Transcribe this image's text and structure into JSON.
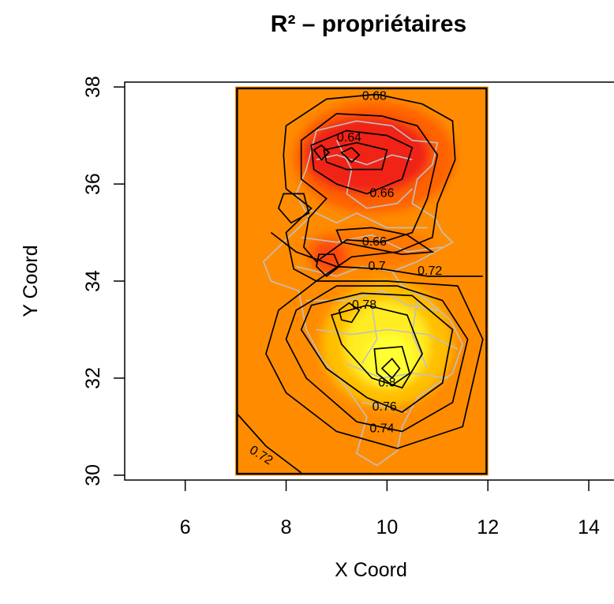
{
  "chart_data": {
    "type": "heatmap",
    "title": "R² – propriétaires",
    "xlabel": "X Coord",
    "ylabel": "Y Coord",
    "xlim": [
      4.8,
      14.5
    ],
    "ylim": [
      29.9,
      38.1
    ],
    "xticks": [
      6,
      8,
      10,
      12,
      14
    ],
    "yticks": [
      30,
      32,
      34,
      36,
      38
    ],
    "raster_extent": {
      "x": [
        7,
        12
      ],
      "y": [
        30,
        38
      ]
    },
    "color_low": "#ff8c00",
    "color_high": "#ffff33",
    "color_min_end": "#ee1c1c",
    "contour_color": "#000000",
    "boundary_color": "#c0c0c0",
    "contour_labels": [
      {
        "text": "0.68",
        "x": 9.75,
        "y": 37.8
      },
      {
        "text": "0.64",
        "x": 9.25,
        "y": 36.95
      },
      {
        "text": "0.66",
        "x": 9.9,
        "y": 35.8
      },
      {
        "text": "0.66",
        "x": 9.75,
        "y": 34.8
      },
      {
        "text": "0.7",
        "x": 9.8,
        "y": 34.3
      },
      {
        "text": "0.72",
        "x": 10.85,
        "y": 34.2
      },
      {
        "text": "0.78",
        "x": 9.55,
        "y": 33.5
      },
      {
        "text": "0.8",
        "x": 10.0,
        "y": 31.9
      },
      {
        "text": "0.76",
        "x": 9.95,
        "y": 31.4
      },
      {
        "text": "0.74",
        "x": 9.9,
        "y": 30.95
      },
      {
        "text": "0.72",
        "x": 7.5,
        "y": 30.4
      }
    ]
  }
}
